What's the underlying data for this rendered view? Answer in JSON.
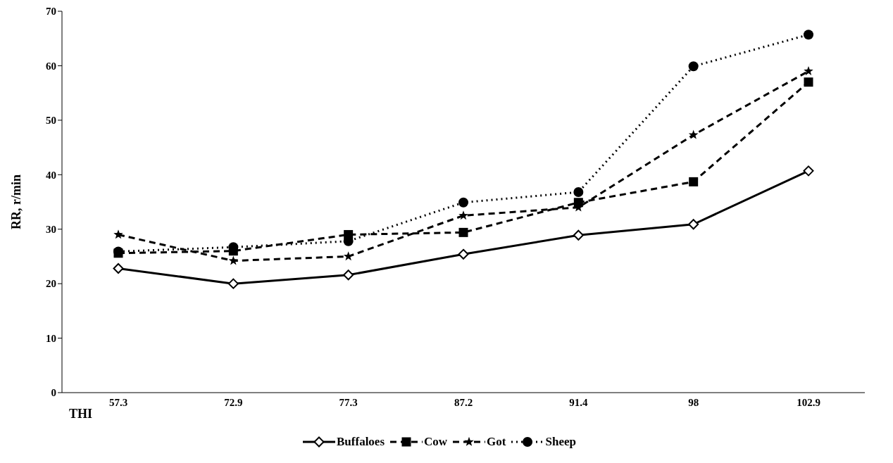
{
  "chart_data": {
    "type": "line",
    "xlabel": "THI",
    "ylabel": "RR, r/min",
    "categories": [
      "57.3",
      "72.9",
      "77.3",
      "87.2",
      "91.4",
      "98",
      "102.9"
    ],
    "series": [
      {
        "name": "Buffaloes",
        "color": "#000000",
        "marker": "diamond",
        "line_style": "solid",
        "values": [
          22.8,
          20,
          21.6,
          25.4,
          28.9,
          30.9,
          40.7
        ]
      },
      {
        "name": "Cow",
        "color": "#000000",
        "marker": "square",
        "line_style": "dashed",
        "values": [
          25.6,
          26,
          29,
          29.4,
          34.9,
          38.7,
          57
        ]
      },
      {
        "name": "Got",
        "color": "#000000",
        "marker": "star",
        "line_style": "dashed",
        "values": [
          29,
          24.2,
          25,
          32.5,
          34,
          47.3,
          59
        ]
      },
      {
        "name": "Sheep",
        "color": "#000000",
        "marker": "circle",
        "line_style": "dotted",
        "values": [
          25.9,
          26.7,
          27.8,
          34.9,
          36.8,
          59.9,
          65.7
        ]
      }
    ],
    "ylim": [
      0,
      70
    ],
    "yticks": [
      0,
      10,
      20,
      30,
      40,
      50,
      60,
      70
    ],
    "grid": false,
    "legend": "bottom"
  }
}
